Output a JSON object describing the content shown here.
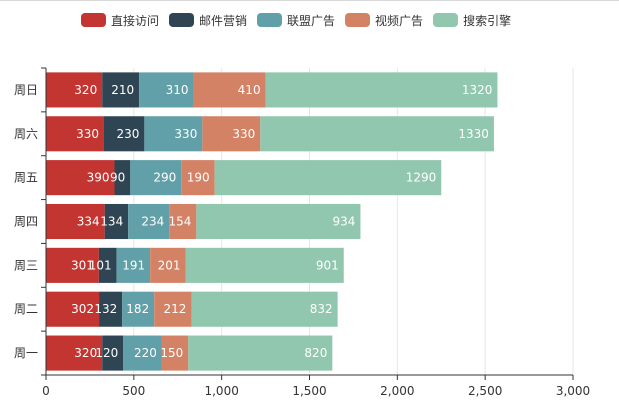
{
  "chart_data": {
    "type": "bar",
    "orientation": "horizontal",
    "stacked": true,
    "categories": [
      "周一",
      "周二",
      "周三",
      "周四",
      "周五",
      "周六",
      "周日"
    ],
    "series": [
      {
        "name": "直接访问",
        "color": "#c23531",
        "values": [
          320,
          302,
          301,
          334,
          390,
          330,
          320
        ]
      },
      {
        "name": "邮件营销",
        "color": "#2f4554",
        "values": [
          120,
          132,
          101,
          134,
          90,
          230,
          210
        ]
      },
      {
        "name": "联盟广告",
        "color": "#61a0a8",
        "values": [
          220,
          182,
          191,
          234,
          290,
          330,
          310
        ]
      },
      {
        "name": "视频广告",
        "color": "#d48265",
        "values": [
          150,
          212,
          201,
          154,
          190,
          330,
          410
        ]
      },
      {
        "name": "搜索引擎",
        "color": "#91c7ae",
        "values": [
          820,
          832,
          901,
          934,
          1290,
          1330,
          1320
        ]
      }
    ],
    "xlim": [
      0,
      3000
    ],
    "xticks": [
      "0",
      "500",
      "1,000",
      "1,500",
      "2,000",
      "2,500",
      "3,000"
    ],
    "grid": true,
    "legend_position": "top",
    "data_labels": "inside-right",
    "title": "",
    "xlabel": "",
    "ylabel": ""
  }
}
